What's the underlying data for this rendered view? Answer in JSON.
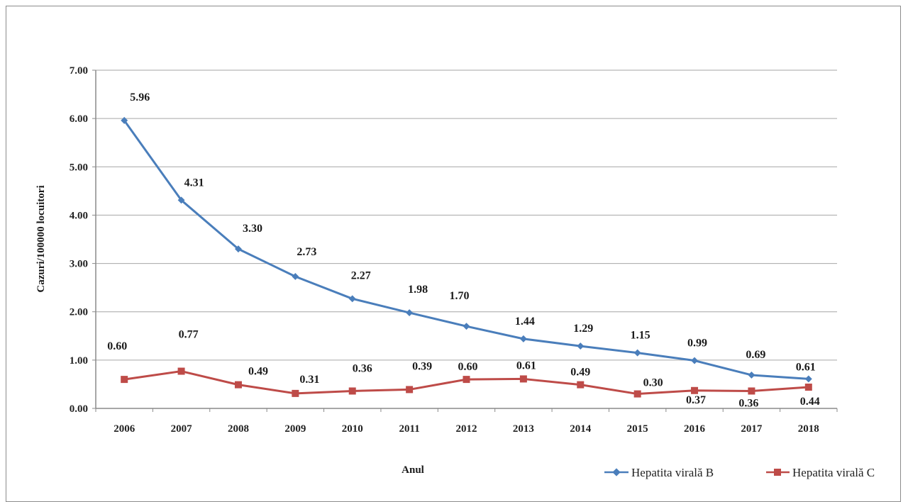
{
  "chart_data": {
    "type": "line",
    "title": "",
    "xlabel": "Anul",
    "ylabel": "Cazuri/100000 locuitori",
    "ylim": [
      0,
      7
    ],
    "yticks": [
      "0.00",
      "1.00",
      "2.00",
      "3.00",
      "4.00",
      "5.00",
      "6.00",
      "7.00"
    ],
    "grid": true,
    "legend_position": "bottom-right",
    "categories": [
      "2006",
      "2007",
      "2008",
      "2009",
      "2010",
      "2011",
      "2012",
      "2013",
      "2014",
      "2015",
      "2016",
      "2017",
      "2018"
    ],
    "series": [
      {
        "name": "Hepatita virală  B",
        "color": "#4a7ebb",
        "marker": "diamond",
        "values": [
          5.96,
          4.31,
          3.3,
          2.73,
          2.27,
          1.98,
          1.7,
          1.44,
          1.29,
          1.15,
          0.99,
          0.69,
          0.61
        ],
        "labels": [
          "5.96",
          "4.31",
          "3.30",
          "2.73",
          "2.27",
          "1.98",
          "1.70",
          "1.44",
          "1.29",
          "1.15",
          "0.99",
          "0.69",
          "0.61"
        ]
      },
      {
        "name": "Hepatita virală C",
        "color": "#be4b48",
        "marker": "square",
        "values": [
          0.6,
          0.77,
          0.49,
          0.31,
          0.36,
          0.39,
          0.6,
          0.61,
          0.49,
          0.3,
          0.37,
          0.36,
          0.44
        ],
        "labels": [
          "0.60",
          "0.77",
          "0.49",
          "0.31",
          "0.36",
          "0.39",
          "0.60",
          "0.61",
          "0.49",
          "0.30",
          "0.37",
          "0.36",
          "0.44"
        ]
      }
    ]
  }
}
